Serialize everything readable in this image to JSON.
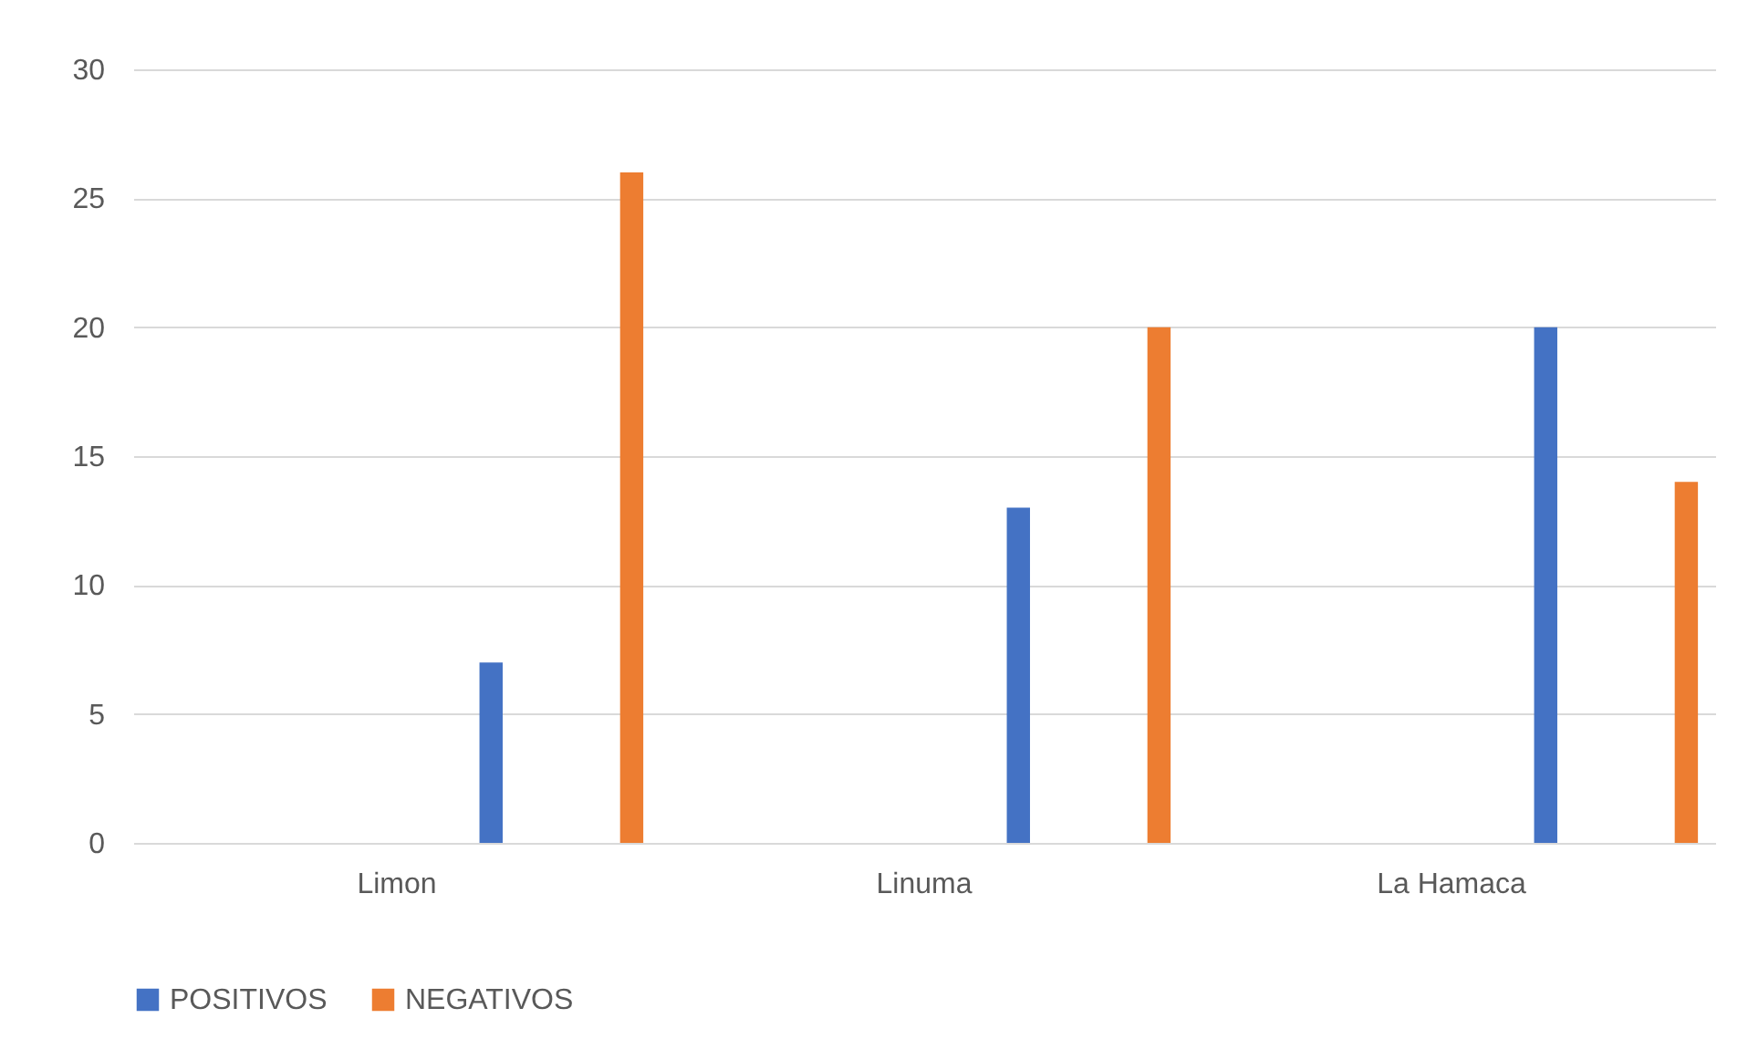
{
  "chart_data": {
    "type": "bar",
    "categories": [
      "Limon",
      "Linuma",
      "La Hamaca"
    ],
    "series": [
      {
        "name": "POSITIVOS",
        "color": "#4472c4",
        "values": [
          7,
          13,
          20
        ]
      },
      {
        "name": "NEGATIVOS",
        "color": "#ed7d31",
        "values": [
          26,
          20,
          14
        ]
      }
    ],
    "ylim": [
      0,
      30
    ],
    "yticks": [
      0,
      5,
      10,
      15,
      20,
      25,
      30
    ],
    "grid": true,
    "legend": "bottom"
  }
}
